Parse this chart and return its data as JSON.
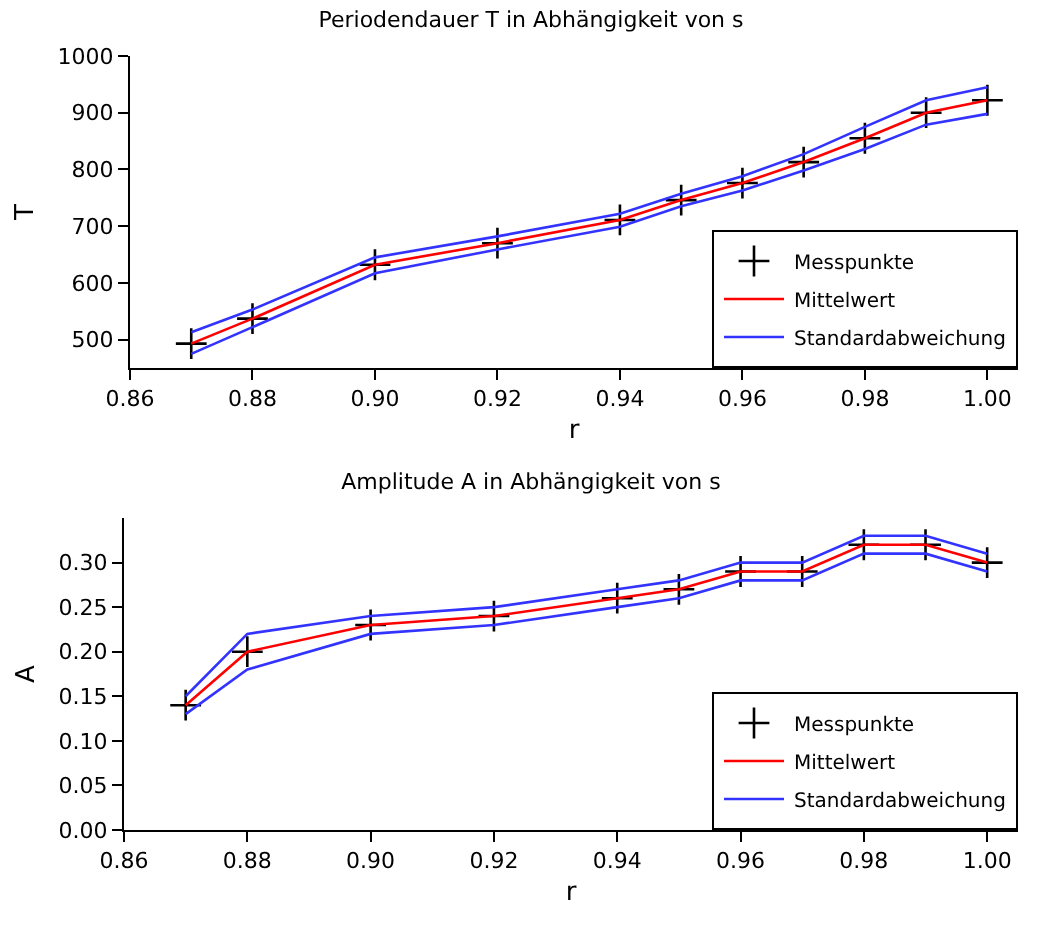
{
  "chart_data": [
    {
      "type": "line",
      "title": "Periodendauer T in Abhängigkeit von s",
      "xlabel": "r",
      "ylabel": "T",
      "x": [
        0.87,
        0.88,
        0.9,
        0.92,
        0.94,
        0.95,
        0.96,
        0.97,
        0.98,
        0.99,
        1.0
      ],
      "xlim": [
        0.86,
        1.005
      ],
      "xticks": [
        {
          "value": 0.86,
          "label": "0.86"
        },
        {
          "value": 0.88,
          "label": "0.88"
        },
        {
          "value": 0.9,
          "label": "0.90"
        },
        {
          "value": 0.92,
          "label": "0.92"
        },
        {
          "value": 0.94,
          "label": "0.94"
        },
        {
          "value": 0.96,
          "label": "0.96"
        },
        {
          "value": 0.98,
          "label": "0.98"
        },
        {
          "value": 1,
          "label": "1.00"
        }
      ],
      "ylim": [
        450,
        1000
      ],
      "yticks": [
        500,
        600,
        700,
        800,
        900,
        1000
      ],
      "grid": false,
      "legend": "bottom right",
      "series": [
        {
          "name": "Messpunkte",
          "type": "scatter",
          "marker": "cross",
          "color": "#000000",
          "values": [
            493,
            537,
            632,
            670,
            711,
            746,
            776,
            813,
            855,
            900,
            922
          ]
        },
        {
          "name": "Mittelwert",
          "type": "line",
          "marker": "none",
          "color": "#ff0000",
          "values": [
            493,
            537,
            632,
            670,
            711,
            746,
            776,
            813,
            855,
            900,
            922
          ]
        },
        {
          "name": "Standardabweichung",
          "type": "line",
          "marker": "none",
          "color": "#3333ff",
          "values": [
            513,
            553,
            645,
            682,
            722,
            757,
            788,
            827,
            875,
            922,
            945
          ]
        },
        {
          "type": "line",
          "marker": "none",
          "color": "#3333ff",
          "values": [
            475,
            522,
            617,
            659,
            699,
            735,
            763,
            798,
            836,
            879,
            898
          ]
        }
      ]
    },
    {
      "type": "line",
      "title": "Amplitude A in Abhängigkeit von s",
      "xlabel": "r",
      "ylabel": "A",
      "x": [
        0.87,
        0.88,
        0.9,
        0.92,
        0.94,
        0.95,
        0.96,
        0.97,
        0.98,
        0.99,
        1.0
      ],
      "xlim": [
        0.86,
        1.005
      ],
      "xticks": [
        {
          "value": 0.86,
          "label": "0.86"
        },
        {
          "value": 0.88,
          "label": "0.88"
        },
        {
          "value": 0.9,
          "label": "0.90"
        },
        {
          "value": 0.92,
          "label": "0.92"
        },
        {
          "value": 0.94,
          "label": "0.94"
        },
        {
          "value": 0.96,
          "label": "0.96"
        },
        {
          "value": 0.98,
          "label": "0.98"
        },
        {
          "value": 1,
          "label": "1.00"
        }
      ],
      "ylim": [
        0,
        0.35
      ],
      "yticks": [
        {
          "value": 0,
          "label": "0.00"
        },
        {
          "value": 0.05,
          "label": "0.05"
        },
        {
          "value": 0.1,
          "label": "0.10"
        },
        {
          "value": 0.15,
          "label": "0.15"
        },
        {
          "value": 0.2,
          "label": "0.20"
        },
        {
          "value": 0.25,
          "label": "0.25"
        },
        {
          "value": 0.3,
          "label": "0.30"
        }
      ],
      "grid": false,
      "legend": "bottom right",
      "series": [
        {
          "name": "Messpunkte",
          "type": "scatter",
          "marker": "cross",
          "color": "#000000",
          "values": [
            0.14,
            0.2,
            0.23,
            0.24,
            0.26,
            0.27,
            0.29,
            0.29,
            0.32,
            0.32,
            0.3
          ]
        },
        {
          "name": "Mittelwert",
          "type": "line",
          "marker": "none",
          "color": "#ff0000",
          "values": [
            0.14,
            0.2,
            0.23,
            0.24,
            0.26,
            0.27,
            0.29,
            0.29,
            0.32,
            0.32,
            0.3
          ]
        },
        {
          "name": "Standardabweichung",
          "type": "line",
          "marker": "none",
          "color": "#3333ff",
          "values": [
            0.15,
            0.22,
            0.24,
            0.25,
            0.27,
            0.28,
            0.3,
            0.3,
            0.33,
            0.33,
            0.31
          ]
        },
        {
          "type": "line",
          "marker": "none",
          "color": "#3333ff",
          "values": [
            0.13,
            0.18,
            0.22,
            0.23,
            0.25,
            0.26,
            0.28,
            0.28,
            0.31,
            0.31,
            0.29
          ]
        }
      ]
    }
  ]
}
